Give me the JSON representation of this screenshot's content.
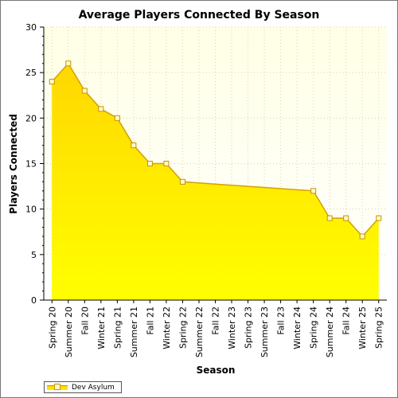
{
  "chart_data": {
    "type": "area",
    "title": "Average Players Connected By Season",
    "xlabel": "Season",
    "ylabel": "Players Connected",
    "ylim": [
      0,
      30
    ],
    "yticks": [
      "0",
      "5",
      "10",
      "15",
      "20",
      "25",
      "30"
    ],
    "grid": true,
    "legend_position": "bottom-left",
    "categories": [
      "Spring 20",
      "Summer 20",
      "Fall 20",
      "Winter 21",
      "Spring 21",
      "Summer 21",
      "Fall 21",
      "Winter 22",
      "Spring 22",
      "Summer 22",
      "Fall 22",
      "Winter 23",
      "Spring 23",
      "Summer 23",
      "Fall 23",
      "Winter 24",
      "Spring 24",
      "Summer 24",
      "Fall 24",
      "Winter 25",
      "Spring 25"
    ],
    "series": [
      {
        "name": "Dev Asylum",
        "values": [
          24,
          26,
          23,
          21,
          20,
          17,
          15,
          15,
          13,
          null,
          null,
          null,
          null,
          null,
          null,
          null,
          12,
          9,
          9,
          7,
          9
        ],
        "fill_top": "#ffd700",
        "fill_bottom": "#ffff00",
        "line_color": "#d4a000",
        "marker_fill": "#ffffcc",
        "marker_stroke": "#c89000"
      }
    ],
    "colors": {
      "plot_bg_top": "#ffffe6",
      "plot_bg_bottom": "#ffffff",
      "grid": "#d8d8a0"
    }
  }
}
